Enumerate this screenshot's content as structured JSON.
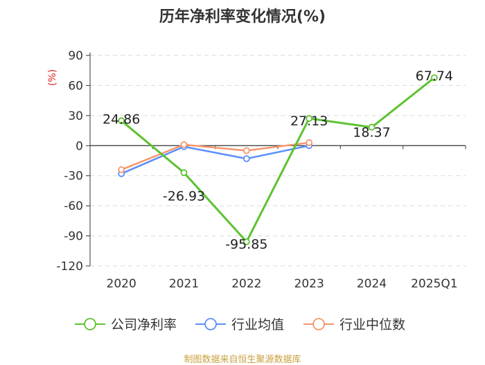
{
  "chart_data": {
    "type": "line",
    "title": "历年净利率变化情况(%)",
    "ylabel": "(%)",
    "xlabel": "",
    "categories": [
      "2020",
      "2021",
      "2022",
      "2023",
      "2024",
      "2025Q1"
    ],
    "ylim": [
      -120,
      90
    ],
    "yticks": [
      90,
      60,
      30,
      0,
      -30,
      -60,
      -90,
      -120
    ],
    "grid": true,
    "legend_position": "bottom",
    "series": [
      {
        "name": "公司净利率",
        "color": "#5cc22f",
        "values": [
          24.86,
          -26.93,
          -95.85,
          27.13,
          18.37,
          67.74
        ],
        "labels": [
          "24.86",
          "-26.93",
          "-95.85",
          "27.13",
          "18.37",
          "67.74"
        ]
      },
      {
        "name": "行业均值",
        "color": "#5b8ff9",
        "values": [
          -28,
          -1,
          -13,
          0,
          null,
          null
        ]
      },
      {
        "name": "行业中位数",
        "color": "#f7956a",
        "values": [
          -24,
          1,
          -5,
          3,
          null,
          null
        ]
      }
    ]
  },
  "source_note": "制图数据来自恒生聚源数据库"
}
